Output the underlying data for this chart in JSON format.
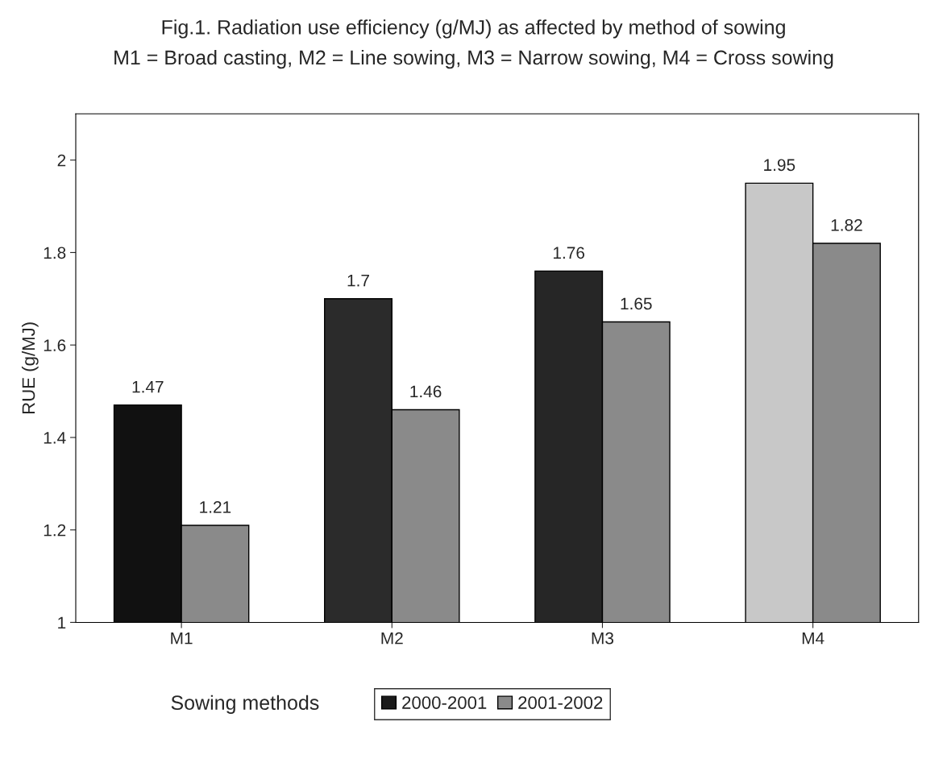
{
  "chart_data": {
    "type": "bar",
    "title": "Fig.1. Radiation use efficiency (g/MJ) as affected by method of sowing",
    "subtitle": "M1 = Broad casting, M2 = Line sowing, M3 = Narrow sowing, M4 = Cross sowing",
    "xlabel": "Sowing methods",
    "ylabel": "RUE (g/MJ)",
    "categories": [
      "M1",
      "M2",
      "M3",
      "M4"
    ],
    "series": [
      {
        "name": "2000-2001",
        "color": "#1a1a1a",
        "colors": [
          "#111111",
          "#2b2b2b",
          "#262626",
          "#c8c8c8"
        ],
        "values": [
          1.47,
          1.7,
          1.76,
          1.95
        ]
      },
      {
        "name": "2001-2002",
        "color": "#8a8a8a",
        "values": [
          1.21,
          1.46,
          1.65,
          1.82
        ]
      }
    ],
    "ylim": [
      1,
      2.1
    ],
    "yticks": [
      1,
      1.2,
      1.4,
      1.6,
      1.8,
      2
    ],
    "data_labels": true,
    "grid": false,
    "legend": "bottom"
  }
}
